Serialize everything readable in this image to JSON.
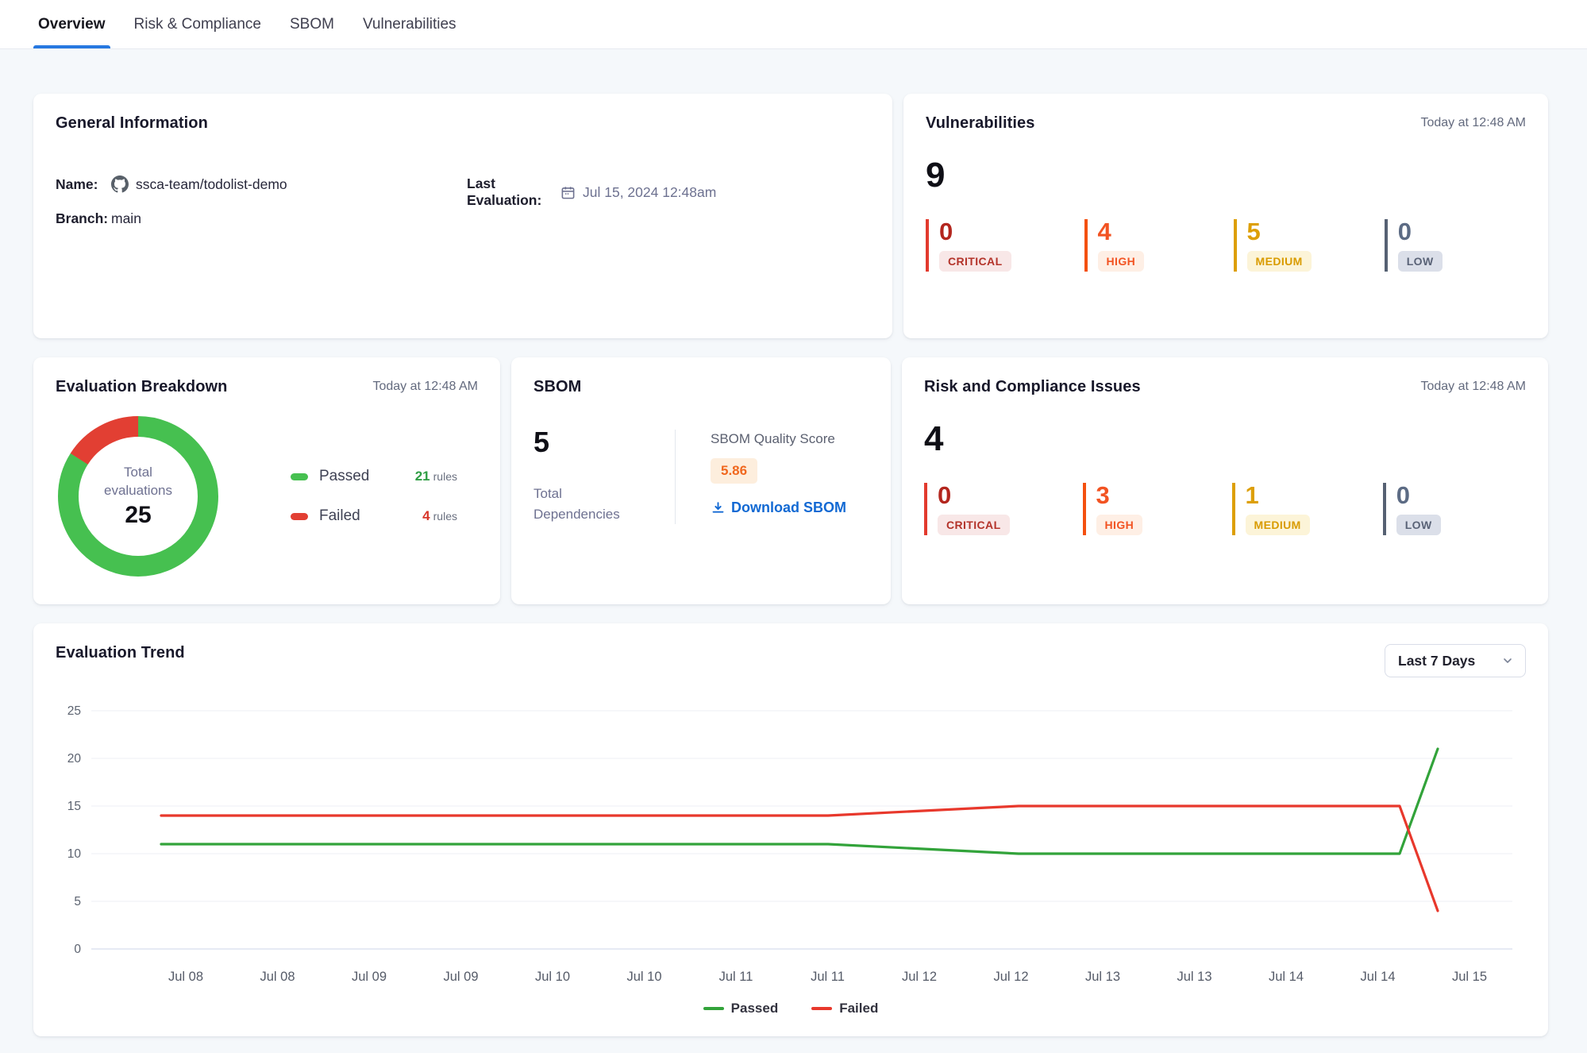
{
  "tabs": {
    "items": [
      {
        "label": "Overview",
        "active": true
      },
      {
        "label": "Risk & Compliance",
        "active": false
      },
      {
        "label": "SBOM",
        "active": false
      },
      {
        "label": "Vulnerabilities",
        "active": false
      }
    ]
  },
  "accent_colors": {
    "tab_underline": "#2678e0",
    "link_blue": "#1269d3"
  },
  "severity_colors": {
    "critical": {
      "bar": "#e23a2e",
      "num": "#b3261e",
      "badge_bg": "#f8e7e7",
      "badge_text": "#b3332a"
    },
    "high": {
      "bar": "#f4500f",
      "num": "#f25322",
      "badge_bg": "#feefe5",
      "badge_text": "#f25322"
    },
    "medium": {
      "bar": "#dd9f06",
      "num": "#dd9f06",
      "badge_bg": "#fcf4d8",
      "badge_text": "#d99b00"
    },
    "low": {
      "bar": "#566173",
      "num": "#5c6b84",
      "badge_bg": "#dbdfe9",
      "badge_text": "#5a6377"
    }
  },
  "icons": {
    "github": "github-icon",
    "calendar": "calendar-icon",
    "download": "download-icon",
    "chevron_down": "chevron-down-icon"
  },
  "general_info": {
    "title": "General Information",
    "name_label": "Name:",
    "name_value": "ssca-team/todolist-demo",
    "branch_label": "Branch:",
    "branch_value": "main",
    "last_eval_label": "Last Evaluation:",
    "last_eval_value": "Jul 15, 2024 12:48am"
  },
  "vulnerabilities": {
    "title": "Vulnerabilities",
    "timestamp": "Today at 12:48 AM",
    "total": "9",
    "severities": [
      {
        "key": "critical",
        "count": "0",
        "label": "CRITICAL"
      },
      {
        "key": "high",
        "count": "4",
        "label": "HIGH"
      },
      {
        "key": "medium",
        "count": "5",
        "label": "MEDIUM"
      },
      {
        "key": "low",
        "count": "0",
        "label": "LOW"
      }
    ]
  },
  "evaluation_breakdown": {
    "title": "Evaluation Breakdown",
    "timestamp": "Today at 12:48 AM",
    "center_label_line1": "Total",
    "center_label_line2": "evaluations",
    "center_total": "25",
    "legend": [
      {
        "label": "Passed",
        "count": "21",
        "unit": "rules",
        "swatch": "#46c050",
        "count_color": "#2f9e44"
      },
      {
        "label": "Failed",
        "count": "4",
        "unit": "rules",
        "swatch": "#e23f33",
        "count_color": "#d8362a"
      }
    ]
  },
  "sbom": {
    "title": "SBOM",
    "total": "5",
    "total_label": "Total Dependencies",
    "score_label": "SBOM Quality Score",
    "score": "5.86",
    "score_text_color": "#f0681f",
    "score_bg_color": "#fdeedd",
    "download_label": "Download SBOM"
  },
  "risk_compliance": {
    "title": "Risk and Compliance Issues",
    "timestamp": "Today at 12:48 AM",
    "total": "4",
    "severities": [
      {
        "key": "critical",
        "count": "0",
        "label": "CRITICAL"
      },
      {
        "key": "high",
        "count": "3",
        "label": "HIGH"
      },
      {
        "key": "medium",
        "count": "1",
        "label": "MEDIUM"
      },
      {
        "key": "low",
        "count": "0",
        "label": "LOW"
      }
    ]
  },
  "evaluation_trend": {
    "title": "Evaluation Trend",
    "range_selector_value": "Last 7 Days"
  },
  "chart_data": [
    {
      "type": "pie",
      "title": "Evaluation Breakdown",
      "labels": [
        "Passed",
        "Failed"
      ],
      "values": [
        21,
        4
      ],
      "colors": [
        "#46c050",
        "#e23f33"
      ],
      "center_text": "Total evaluations 25",
      "donut": true
    },
    {
      "type": "line",
      "title": "Evaluation Trend",
      "x_labels": [
        "Jul 08",
        "Jul 08",
        "Jul 09",
        "Jul 09",
        "Jul 10",
        "Jul 10",
        "Jul 11",
        "Jul 11",
        "Jul 12",
        "Jul 12",
        "Jul 13",
        "Jul 13",
        "Jul 14",
        "Jul 14",
        "Jul 15"
      ],
      "series": [
        {
          "name": "Passed",
          "color": "#32a33a",
          "values": [
            11,
            11,
            11,
            11,
            11,
            11,
            11,
            11,
            10.5,
            10,
            10,
            10,
            10,
            10,
            21
          ]
        },
        {
          "name": "Failed",
          "color": "#e8382c",
          "values": [
            14,
            14,
            14,
            14,
            14,
            14,
            14,
            14,
            14.5,
            15,
            15,
            15,
            15,
            15,
            4
          ]
        }
      ],
      "ylabel": "",
      "xlabel": "",
      "ylim": [
        0,
        25
      ],
      "yticks": [
        0,
        5,
        10,
        15,
        20,
        25
      ],
      "grid": true,
      "legend_position": "bottom"
    }
  ]
}
